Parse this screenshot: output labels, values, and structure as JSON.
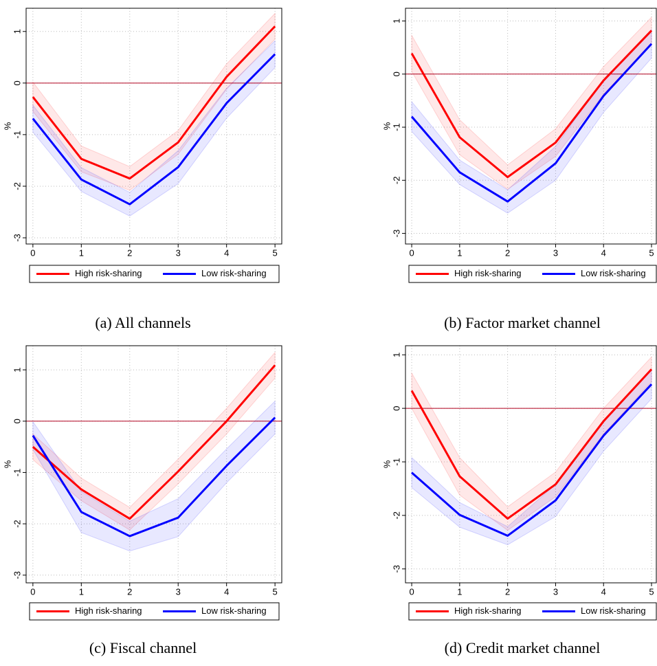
{
  "chart_data": [
    {
      "type": "line",
      "caption": "(a) All channels",
      "y_label": "%",
      "x": [
        0,
        1,
        2,
        3,
        4,
        5
      ],
      "xlim": [
        -0.14,
        5.14
      ],
      "xticks": [
        0,
        1,
        2,
        3,
        4,
        5
      ],
      "ylim": [
        -3.12,
        1.45
      ],
      "yticks": [
        -3,
        -2,
        -1,
        0,
        1
      ],
      "grid": true,
      "hline": 0,
      "series": [
        {
          "name": "High risk-sharing",
          "color": "#ff0000",
          "values": [
            -0.27,
            -1.47,
            -1.85,
            -1.15,
            0.12,
            1.1
          ],
          "lower": [
            -0.55,
            -1.72,
            -2.08,
            -1.38,
            -0.12,
            0.85
          ],
          "upper": [
            0.02,
            -1.22,
            -1.62,
            -0.92,
            0.37,
            1.35
          ]
        },
        {
          "name": "Low risk-sharing",
          "color": "#0000ff",
          "values": [
            -0.69,
            -1.87,
            -2.35,
            -1.63,
            -0.39,
            0.56
          ],
          "lower": [
            -0.95,
            -2.1,
            -2.58,
            -1.95,
            -0.68,
            0.3
          ],
          "upper": [
            -0.43,
            -1.64,
            -2.12,
            -1.31,
            -0.1,
            0.82
          ]
        }
      ]
    },
    {
      "type": "line",
      "caption": "(b) Factor market channel",
      "y_label": "%",
      "x": [
        0,
        1,
        2,
        3,
        4,
        5
      ],
      "xlim": [
        -0.13,
        5.1
      ],
      "xticks": [
        0,
        1,
        2,
        3,
        4,
        5
      ],
      "ylim": [
        -3.2,
        1.24
      ],
      "yticks": [
        -3,
        -2,
        -1,
        0,
        1
      ],
      "grid": true,
      "hline": 0,
      "series": [
        {
          "name": "High risk-sharing",
          "color": "#ff0000",
          "values": [
            0.39,
            -1.19,
            -1.94,
            -1.29,
            -0.12,
            0.82
          ],
          "lower": [
            0.05,
            -1.52,
            -2.17,
            -1.55,
            -0.38,
            0.57
          ],
          "upper": [
            0.73,
            -0.86,
            -1.71,
            -1.03,
            0.14,
            1.07
          ]
        },
        {
          "name": "Low risk-sharing",
          "color": "#0000ff",
          "values": [
            -0.8,
            -1.85,
            -2.4,
            -1.68,
            -0.41,
            0.57
          ],
          "lower": [
            -1.08,
            -2.08,
            -2.62,
            -2.0,
            -0.72,
            0.3
          ],
          "upper": [
            -0.52,
            -1.62,
            -2.18,
            -1.36,
            -0.1,
            0.84
          ]
        }
      ]
    },
    {
      "type": "line",
      "caption": "(c) Fiscal channel",
      "y_label": "%",
      "x": [
        0,
        1,
        2,
        3,
        4,
        5
      ],
      "xlim": [
        -0.14,
        5.14
      ],
      "xticks": [
        0,
        1,
        2,
        3,
        4,
        5
      ],
      "ylim": [
        -3.15,
        1.47
      ],
      "yticks": [
        -3,
        -2,
        -1,
        0,
        1
      ],
      "grid": true,
      "hline": 0,
      "series": [
        {
          "name": "High risk-sharing",
          "color": "#ff0000",
          "values": [
            -0.5,
            -1.33,
            -1.9,
            -0.98,
            0.0,
            1.09
          ],
          "lower": [
            -0.75,
            -1.55,
            -2.12,
            -1.22,
            -0.25,
            0.84
          ],
          "upper": [
            -0.25,
            -1.11,
            -1.68,
            -0.74,
            0.25,
            1.34
          ]
        },
        {
          "name": "Low risk-sharing",
          "color": "#0000ff",
          "values": [
            -0.28,
            -1.77,
            -2.24,
            -1.88,
            -0.87,
            0.07
          ],
          "lower": [
            -0.55,
            -2.17,
            -2.53,
            -2.25,
            -1.2,
            -0.25
          ],
          "upper": [
            -0.01,
            -1.37,
            -1.95,
            -1.51,
            -0.54,
            0.39
          ]
        }
      ]
    },
    {
      "type": "line",
      "caption": "(d) Credit market channel",
      "y_label": "%",
      "x": [
        0,
        1,
        2,
        3,
        4,
        5
      ],
      "xlim": [
        -0.13,
        5.1
      ],
      "xticks": [
        0,
        1,
        2,
        3,
        4,
        5
      ],
      "ylim": [
        -3.26,
        1.17
      ],
      "yticks": [
        -3,
        -2,
        -1,
        0,
        1
      ],
      "grid": true,
      "hline": 0,
      "series": [
        {
          "name": "High risk-sharing",
          "color": "#ff0000",
          "values": [
            0.33,
            -1.27,
            -2.06,
            -1.42,
            -0.24,
            0.73
          ],
          "lower": [
            0.0,
            -1.62,
            -2.28,
            -1.65,
            -0.48,
            0.5
          ],
          "upper": [
            0.66,
            -0.92,
            -1.84,
            -1.19,
            0.0,
            0.96
          ]
        },
        {
          "name": "Low risk-sharing",
          "color": "#0000ff",
          "values": [
            -1.2,
            -1.99,
            -2.38,
            -1.72,
            -0.51,
            0.45
          ],
          "lower": [
            -1.48,
            -2.22,
            -2.55,
            -2.02,
            -0.8,
            0.18
          ],
          "upper": [
            -0.92,
            -1.76,
            -2.21,
            -1.42,
            -0.22,
            0.72
          ]
        }
      ]
    }
  ]
}
